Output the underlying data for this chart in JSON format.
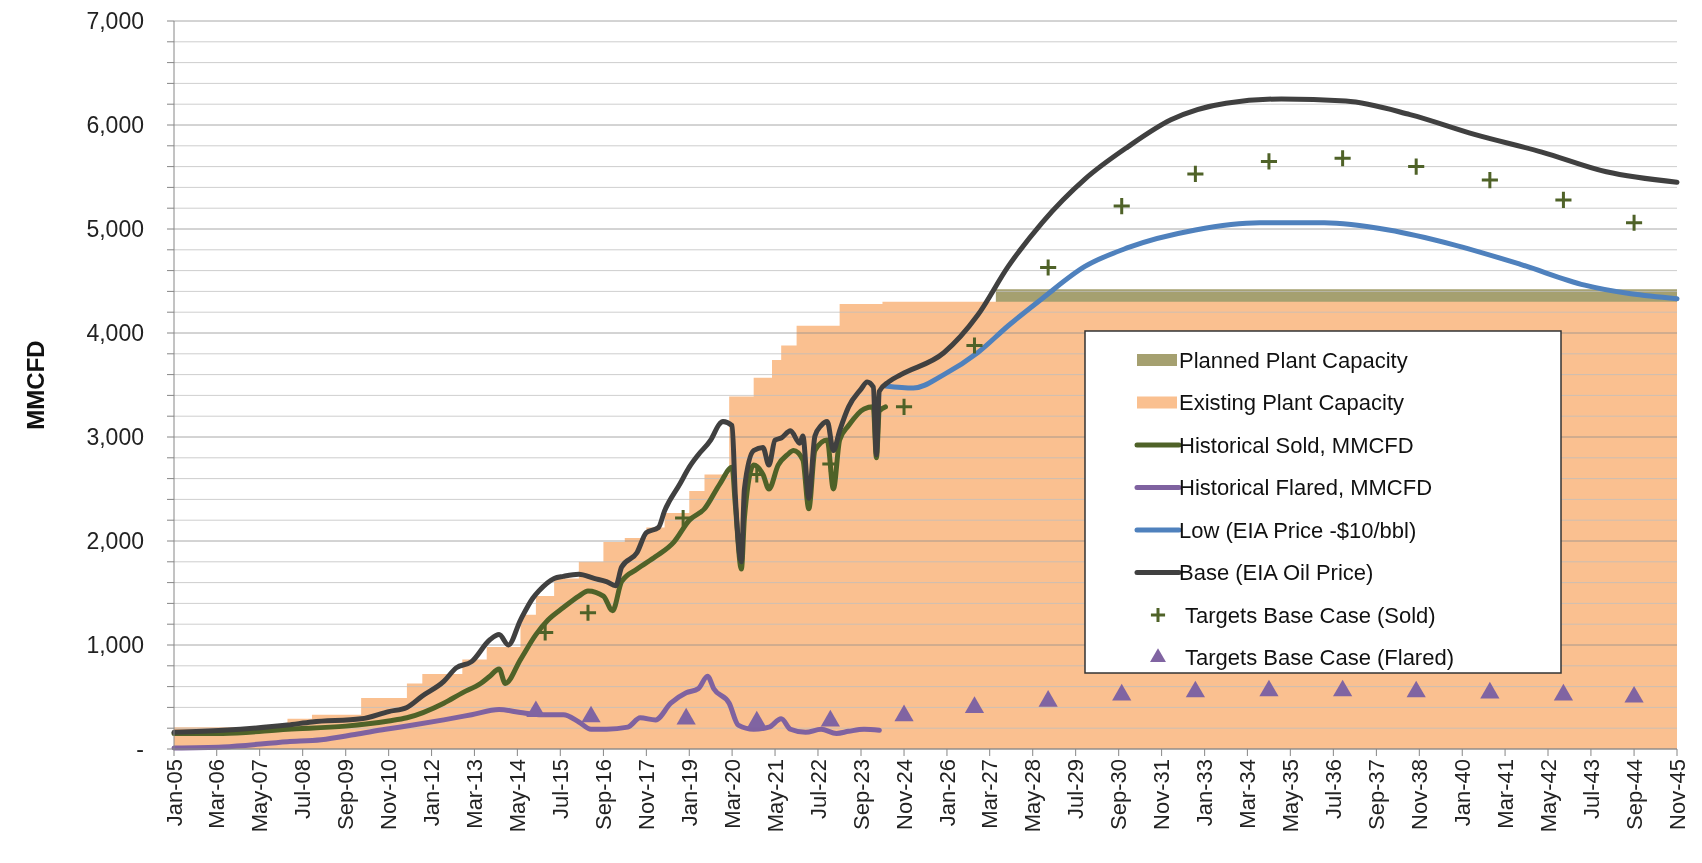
{
  "chart_data": {
    "type": "line",
    "ylabel": "MMCFD",
    "xlim": [
      "2005-01",
      "2045-11"
    ],
    "ylim": [
      0,
      7000
    ],
    "xticks": [
      {
        "value": "2005-01",
        "label": "Jan-05"
      },
      {
        "value": "2006-03",
        "label": "Mar-06"
      },
      {
        "value": "2007-05",
        "label": "May-07"
      },
      {
        "value": "2008-07",
        "label": "Jul-08"
      },
      {
        "value": "2009-09",
        "label": "Sep-09"
      },
      {
        "value": "2010-11",
        "label": "Nov-10"
      },
      {
        "value": "2012-01",
        "label": "Jan-12"
      },
      {
        "value": "2013-03",
        "label": "Mar-13"
      },
      {
        "value": "2014-05",
        "label": "May-14"
      },
      {
        "value": "2015-07",
        "label": "Jul-15"
      },
      {
        "value": "2016-09",
        "label": "Sep-16"
      },
      {
        "value": "2017-11",
        "label": "Nov-17"
      },
      {
        "value": "2019-01",
        "label": "Jan-19"
      },
      {
        "value": "2020-03",
        "label": "Mar-20"
      },
      {
        "value": "2021-05",
        "label": "May-21"
      },
      {
        "value": "2022-07",
        "label": "Jul-22"
      },
      {
        "value": "2023-09",
        "label": "Sep-23"
      },
      {
        "value": "2024-11",
        "label": "Nov-24"
      },
      {
        "value": "2026-01",
        "label": "Jan-26"
      },
      {
        "value": "2027-03",
        "label": "Mar-27"
      },
      {
        "value": "2028-05",
        "label": "May-28"
      },
      {
        "value": "2029-07",
        "label": "Jul-29"
      },
      {
        "value": "2030-09",
        "label": "Sep-30"
      },
      {
        "value": "2031-11",
        "label": "Nov-31"
      },
      {
        "value": "2033-01",
        "label": "Jan-33"
      },
      {
        "value": "2034-03",
        "label": "Mar-34"
      },
      {
        "value": "2035-05",
        "label": "May-35"
      },
      {
        "value": "2036-07",
        "label": "Jul-36"
      },
      {
        "value": "2037-09",
        "label": "Sep-37"
      },
      {
        "value": "2038-11",
        "label": "Nov-38"
      },
      {
        "value": "2040-01",
        "label": "Jan-40"
      },
      {
        "value": "2041-03",
        "label": "Mar-41"
      },
      {
        "value": "2042-05",
        "label": "May-42"
      },
      {
        "value": "2043-07",
        "label": "Jul-43"
      },
      {
        "value": "2044-09",
        "label": "Sep-44"
      },
      {
        "value": "2045-11",
        "label": "Nov-45"
      }
    ],
    "yticks": [
      {
        "value": 0,
        "label": "-"
      },
      {
        "value": 200,
        "label": null
      },
      {
        "value": 400,
        "label": null
      },
      {
        "value": 600,
        "label": null
      },
      {
        "value": 800,
        "label": null
      },
      {
        "value": 1000,
        "label": "1,000"
      },
      {
        "value": 1200,
        "label": null
      },
      {
        "value": 1400,
        "label": null
      },
      {
        "value": 1600,
        "label": null
      },
      {
        "value": 1800,
        "label": null
      },
      {
        "value": 2000,
        "label": "2,000"
      },
      {
        "value": 2200,
        "label": null
      },
      {
        "value": 2400,
        "label": null
      },
      {
        "value": 2600,
        "label": null
      },
      {
        "value": 2800,
        "label": null
      },
      {
        "value": 3000,
        "label": "3,000"
      },
      {
        "value": 3200,
        "label": null
      },
      {
        "value": 3400,
        "label": null
      },
      {
        "value": 3600,
        "label": null
      },
      {
        "value": 3800,
        "label": null
      },
      {
        "value": 4000,
        "label": "4,000"
      },
      {
        "value": 4200,
        "label": null
      },
      {
        "value": 4400,
        "label": null
      },
      {
        "value": 4600,
        "label": null
      },
      {
        "value": 4800,
        "label": null
      },
      {
        "value": 5000,
        "label": "5,000"
      },
      {
        "value": 5200,
        "label": null
      },
      {
        "value": 5400,
        "label": null
      },
      {
        "value": 5600,
        "label": null
      },
      {
        "value": 5800,
        "label": null
      },
      {
        "value": 6000,
        "label": "6,000"
      },
      {
        "value": 6200,
        "label": null
      },
      {
        "value": 6400,
        "label": null
      },
      {
        "value": 6600,
        "label": null
      },
      {
        "value": 6800,
        "label": null
      },
      {
        "value": 7000,
        "label": "7,000"
      }
    ],
    "grid": "y",
    "legend": "right",
    "series": [
      {
        "name": "Planned Plant Capacity",
        "type": "area",
        "color": "#a5a070",
        "x": [
          "2027-05",
          "2045-11"
        ],
        "values": [
          4420,
          4420
        ]
      },
      {
        "name": "Existing Plant Capacity",
        "type": "area",
        "color": "#fac090",
        "x": [
          "2005-01",
          "2008-02",
          "2008-10",
          "2010-02",
          "2011-05",
          "2011-10",
          "2012-11",
          "2013-07",
          "2014-06",
          "2014-11",
          "2015-05",
          "2016-01",
          "2016-09",
          "2017-04",
          "2017-11",
          "2018-05",
          "2019-01",
          "2019-06",
          "2020-02",
          "2020-10",
          "2021-04",
          "2021-07",
          "2021-12",
          "2023-02",
          "2024-04",
          "2045-11"
        ],
        "values": [
          210,
          290,
          330,
          490,
          630,
          720,
          860,
          980,
          1290,
          1470,
          1640,
          1800,
          1990,
          2030,
          2130,
          2270,
          2480,
          2640,
          3390,
          3570,
          3740,
          3880,
          4070,
          4280,
          4300,
          4300
        ]
      },
      {
        "name": "Historical Sold, MMCFD",
        "color": "#4f6228",
        "x": [
          "2005-01",
          "2006-05",
          "2008-02",
          "2009-09",
          "2010-11",
          "2011-05",
          "2012-05",
          "2012-11",
          "2013-05",
          "2013-08",
          "2013-11",
          "2014-01",
          "2014-06",
          "2014-11",
          "2015-03",
          "2015-08",
          "2016-01",
          "2016-04",
          "2016-09",
          "2016-12",
          "2017-03",
          "2017-08",
          "2018-02",
          "2018-08",
          "2019-01",
          "2019-06",
          "2019-11",
          "2020-03",
          "2020-04",
          "2020-06",
          "2020-07",
          "2020-10",
          "2021-01",
          "2021-03",
          "2021-06",
          "2021-09",
          "2021-11",
          "2022-02",
          "2022-04",
          "2022-06",
          "2022-10",
          "2022-12",
          "2023-02",
          "2023-05",
          "2023-10",
          "2024-01",
          "2024-02",
          "2024-03",
          "2024-05"
        ],
        "values": [
          150,
          150,
          190,
          220,
          270,
          300,
          440,
          540,
          630,
          700,
          770,
          630,
          860,
          1100,
          1240,
          1360,
          1470,
          1520,
          1470,
          1330,
          1610,
          1730,
          1850,
          1990,
          2200,
          2310,
          2550,
          2710,
          2360,
          1730,
          2220,
          2730,
          2640,
          2500,
          2730,
          2830,
          2870,
          2780,
          2310,
          2870,
          2970,
          2500,
          2970,
          3110,
          3270,
          3290,
          2800,
          3250,
          3290
        ]
      },
      {
        "name": "Historical Flared, MMCFD",
        "color": "#7f62a0",
        "x": [
          "2005-01",
          "2006-05",
          "2008-02",
          "2009-01",
          "2009-12",
          "2010-10",
          "2011-07",
          "2012-05",
          "2013-02",
          "2013-11",
          "2014-06",
          "2014-12",
          "2015-08",
          "2016-01",
          "2016-05",
          "2016-10",
          "2017-05",
          "2017-09",
          "2018-02",
          "2018-07",
          "2018-12",
          "2019-04",
          "2019-07",
          "2019-09",
          "2020-02",
          "2020-05",
          "2020-10",
          "2021-03",
          "2021-07",
          "2021-10",
          "2022-03",
          "2022-08",
          "2023-01",
          "2023-05",
          "2023-10",
          "2024-03"
        ],
        "values": [
          10,
          20,
          70,
          90,
          140,
          190,
          230,
          280,
          330,
          380,
          350,
          330,
          330,
          260,
          190,
          190,
          210,
          300,
          280,
          440,
          540,
          580,
          700,
          580,
          440,
          230,
          190,
          210,
          290,
          190,
          160,
          190,
          150,
          170,
          190,
          180
        ]
      },
      {
        "name": "Low (EIA Price -$10/bbl)",
        "color": "#4f81bd",
        "x": [
          "2024-05",
          "2025-02",
          "2025-12",
          "2026-11",
          "2027-09",
          "2028-08",
          "2029-10",
          "2030-12",
          "2032-10",
          "2034-07",
          "2036-04",
          "2038-01",
          "2039-10",
          "2041-08",
          "2043-05",
          "2045-11"
        ],
        "values": [
          3490,
          3470,
          3600,
          3810,
          4070,
          4330,
          4640,
          4820,
          4990,
          5060,
          5060,
          4990,
          4850,
          4660,
          4460,
          4330
        ]
      },
      {
        "name": "Base (EIA Oil Price)",
        "color": "#404040",
        "x": [
          "2005-01",
          "2006-05",
          "2008-02",
          "2008-10",
          "2010-02",
          "2010-11",
          "2011-05",
          "2011-10",
          "2012-05",
          "2012-09",
          "2013-02",
          "2013-08",
          "2013-11",
          "2014-02",
          "2014-06",
          "2014-10",
          "2014-12",
          "2015-05",
          "2015-08",
          "2016-01",
          "2016-06",
          "2016-10",
          "2017-01",
          "2017-03",
          "2017-08",
          "2017-11",
          "2018-03",
          "2018-05",
          "2018-10",
          "2019-01",
          "2019-04",
          "2019-08",
          "2019-11",
          "2019-12",
          "2020-03",
          "2020-04",
          "2020-06",
          "2020-07",
          "2020-10",
          "2021-01",
          "2021-03",
          "2021-05",
          "2021-07",
          "2021-10",
          "2022-01",
          "2022-02",
          "2022-04",
          "2022-06",
          "2022-08",
          "2022-10",
          "2022-12",
          "2023-02",
          "2023-05",
          "2023-09",
          "2023-11",
          "2024-01",
          "2024-02",
          "2024-03",
          "2024-06",
          "2024-10",
          "2025-12",
          "2026-11",
          "2027-09",
          "2028-08",
          "2029-10",
          "2030-12",
          "2032-02",
          "2033-08",
          "2035-02",
          "2036-11",
          "2038-08",
          "2040-05",
          "2042-03",
          "2043-12",
          "2045-11"
        ],
        "values": [
          160,
          180,
          230,
          260,
          290,
          360,
          400,
          510,
          650,
          780,
          840,
          1050,
          1100,
          1000,
          1240,
          1450,
          1520,
          1640,
          1660,
          1680,
          1640,
          1610,
          1570,
          1750,
          1890,
          2080,
          2130,
          2290,
          2550,
          2710,
          2830,
          2970,
          3130,
          3150,
          3110,
          2450,
          1800,
          2500,
          2870,
          2900,
          2730,
          2970,
          2990,
          3060,
          2940,
          3010,
          2410,
          3010,
          3110,
          3150,
          2870,
          3060,
          3290,
          3460,
          3530,
          3480,
          2830,
          3440,
          3530,
          3600,
          3810,
          4170,
          4640,
          5060,
          5480,
          5790,
          6050,
          6210,
          6250,
          6230,
          6100,
          5910,
          5740,
          5550,
          5450
        ]
      },
      {
        "name": "Targets Base Case (Sold)",
        "type": "scatter",
        "marker": "cross",
        "color": "#4f6228",
        "x": [
          "2015-02",
          "2016-04",
          "2018-11",
          "2020-11",
          "2022-11",
          "2024-11",
          "2026-10",
          "2028-10",
          "2030-10",
          "2032-10",
          "2034-10",
          "2036-10",
          "2038-10",
          "2040-10",
          "2042-10",
          "2044-09"
        ],
        "values": [
          1120,
          1310,
          2220,
          2640,
          2740,
          3290,
          3880,
          4630,
          5220,
          5530,
          5650,
          5680,
          5600,
          5470,
          5280,
          5060
        ]
      },
      {
        "name": "Targets Base Case (Flared)",
        "type": "scatter",
        "marker": "triangle",
        "color": "#8064a2",
        "x": [
          "2014-11",
          "2016-05",
          "2018-12",
          "2020-11",
          "2022-11",
          "2024-11",
          "2026-10",
          "2028-10",
          "2030-10",
          "2032-10",
          "2034-10",
          "2036-10",
          "2038-10",
          "2040-10",
          "2042-10",
          "2044-09"
        ],
        "values": [
          360,
          310,
          290,
          260,
          270,
          320,
          400,
          460,
          520,
          550,
          560,
          560,
          550,
          540,
          520,
          500
        ]
      }
    ]
  }
}
